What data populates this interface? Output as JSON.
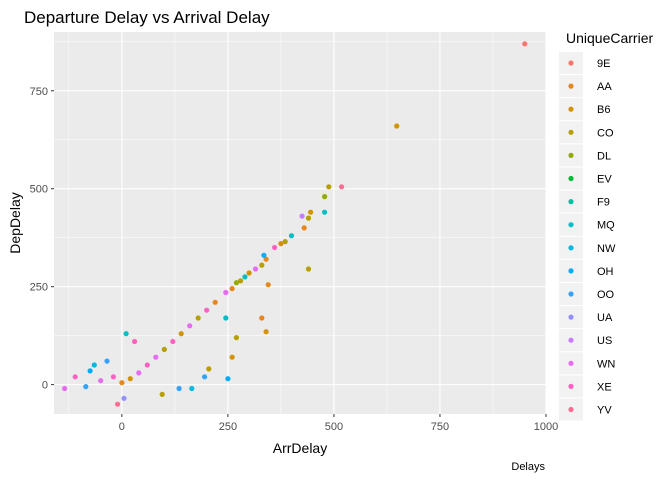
{
  "chart_data": {
    "type": "scatter",
    "title": "Departure Delay vs Arrival Delay",
    "xlabel": "ArrDelay",
    "ylabel": "DepDelay",
    "caption": "Delays",
    "xlim": [
      -160,
      1000
    ],
    "ylim": [
      -75,
      900
    ],
    "xticks": [
      0,
      250,
      500,
      750,
      1000
    ],
    "yticks": [
      0,
      250,
      500,
      750
    ],
    "grid": true,
    "legend": {
      "title": "UniqueCarrier",
      "position": "right",
      "entries": [
        {
          "label": "9E",
          "color": "#F8766D"
        },
        {
          "label": "AA",
          "color": "#E7861B"
        },
        {
          "label": "B6",
          "color": "#D39200"
        },
        {
          "label": "CO",
          "color": "#B79F00"
        },
        {
          "label": "DL",
          "color": "#93AA00"
        },
        {
          "label": "EV",
          "color": "#00BA38"
        },
        {
          "label": "F9",
          "color": "#00C19F"
        },
        {
          "label": "MQ",
          "color": "#00BFC4"
        },
        {
          "label": "NW",
          "color": "#00B9E3"
        },
        {
          "label": "OH",
          "color": "#00ADFA"
        },
        {
          "label": "OO",
          "color": "#35A2FF"
        },
        {
          "label": "UA",
          "color": "#9590FF"
        },
        {
          "label": "US",
          "color": "#C77CFF"
        },
        {
          "label": "WN",
          "color": "#E76BF3"
        },
        {
          "label": "XE",
          "color": "#FF61C3"
        },
        {
          "label": "YV",
          "color": "#FF6C91"
        }
      ]
    },
    "points": [
      {
        "x": 950,
        "y": 870,
        "c": "9E"
      },
      {
        "x": 648,
        "y": 660,
        "c": "B6"
      },
      {
        "x": 518,
        "y": 505,
        "c": "YV"
      },
      {
        "x": 488,
        "y": 505,
        "c": "CO"
      },
      {
        "x": 478,
        "y": 480,
        "c": "DL"
      },
      {
        "x": 478,
        "y": 440,
        "c": "MQ"
      },
      {
        "x": 445,
        "y": 440,
        "c": "B6"
      },
      {
        "x": 440,
        "y": 425,
        "c": "CO"
      },
      {
        "x": 430,
        "y": 400,
        "c": "AA"
      },
      {
        "x": 425,
        "y": 430,
        "c": "US"
      },
      {
        "x": 400,
        "y": 380,
        "c": "MQ"
      },
      {
        "x": 385,
        "y": 365,
        "c": "CO"
      },
      {
        "x": 375,
        "y": 360,
        "c": "B6"
      },
      {
        "x": 360,
        "y": 350,
        "c": "XE"
      },
      {
        "x": 340,
        "y": 320,
        "c": "AA"
      },
      {
        "x": 335,
        "y": 330,
        "c": "OH"
      },
      {
        "x": 330,
        "y": 305,
        "c": "CO"
      },
      {
        "x": 315,
        "y": 295,
        "c": "WN"
      },
      {
        "x": 300,
        "y": 285,
        "c": "B6"
      },
      {
        "x": 290,
        "y": 275,
        "c": "MQ"
      },
      {
        "x": 280,
        "y": 265,
        "c": "CO"
      },
      {
        "x": 270,
        "y": 260,
        "c": "DL"
      },
      {
        "x": 260,
        "y": 245,
        "c": "AA"
      },
      {
        "x": 245,
        "y": 235,
        "c": "WN"
      },
      {
        "x": 330,
        "y": 170,
        "c": "AA"
      },
      {
        "x": 340,
        "y": 135,
        "c": "B6"
      },
      {
        "x": 440,
        "y": 295,
        "c": "CO"
      },
      {
        "x": 345,
        "y": 255,
        "c": "AA"
      },
      {
        "x": 245,
        "y": 170,
        "c": "MQ"
      },
      {
        "x": 270,
        "y": 120,
        "c": "CO"
      },
      {
        "x": 260,
        "y": 70,
        "c": "B6"
      },
      {
        "x": 250,
        "y": 15,
        "c": "OH"
      },
      {
        "x": 205,
        "y": 40,
        "c": "CO"
      },
      {
        "x": 195,
        "y": 20,
        "c": "OO"
      },
      {
        "x": 165,
        "y": -10,
        "c": "NW"
      },
      {
        "x": 135,
        "y": -10,
        "c": "OO"
      },
      {
        "x": 95,
        "y": -25,
        "c": "CO"
      },
      {
        "x": -135,
        "y": -10,
        "c": "WN"
      },
      {
        "x": -110,
        "y": 20,
        "c": "XE"
      },
      {
        "x": -85,
        "y": -5,
        "c": "OO"
      },
      {
        "x": -75,
        "y": 35,
        "c": "OH"
      },
      {
        "x": -65,
        "y": 50,
        "c": "NW"
      },
      {
        "x": -35,
        "y": 60,
        "c": "OO"
      },
      {
        "x": -10,
        "y": -50,
        "c": "YV"
      },
      {
        "x": 5,
        "y": -35,
        "c": "UA"
      },
      {
        "x": 10,
        "y": 130,
        "c": "MQ"
      },
      {
        "x": 30,
        "y": 110,
        "c": "XE"
      },
      {
        "x": -50,
        "y": 10,
        "c": "WN"
      },
      {
        "x": -20,
        "y": 20,
        "c": "XE"
      },
      {
        "x": 0,
        "y": 5,
        "c": "AA"
      },
      {
        "x": 20,
        "y": 15,
        "c": "B6"
      },
      {
        "x": 40,
        "y": 30,
        "c": "WN"
      },
      {
        "x": 60,
        "y": 50,
        "c": "XE"
      },
      {
        "x": 80,
        "y": 70,
        "c": "WN"
      },
      {
        "x": 100,
        "y": 90,
        "c": "CO"
      },
      {
        "x": 120,
        "y": 110,
        "c": "XE"
      },
      {
        "x": 140,
        "y": 130,
        "c": "B6"
      },
      {
        "x": 160,
        "y": 150,
        "c": "WN"
      },
      {
        "x": 180,
        "y": 170,
        "c": "CO"
      },
      {
        "x": 200,
        "y": 190,
        "c": "XE"
      },
      {
        "x": 220,
        "y": 210,
        "c": "AA"
      }
    ]
  }
}
